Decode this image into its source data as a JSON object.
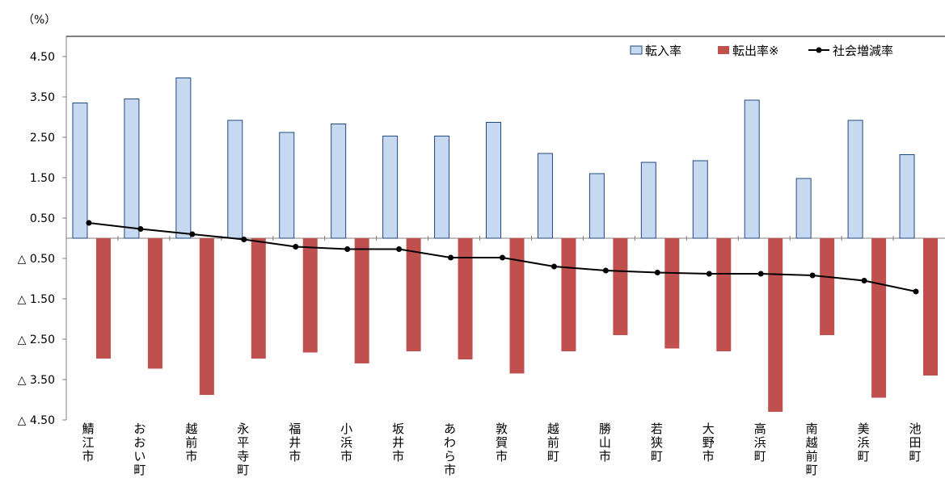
{
  "chart_data": {
    "type": "bar",
    "ylabel": "（%）",
    "ylim": [
      -4.5,
      5.0
    ],
    "yticks": [
      {
        "value": 4.5,
        "label": "4.50"
      },
      {
        "value": 3.5,
        "label": "3.50"
      },
      {
        "value": 2.5,
        "label": "2.50"
      },
      {
        "value": 1.5,
        "label": "1.50"
      },
      {
        "value": 0.5,
        "label": "0.50"
      },
      {
        "value": -0.5,
        "label": "△ 0.50"
      },
      {
        "value": -1.5,
        "label": "△ 1.50"
      },
      {
        "value": -2.5,
        "label": "△ 2.50"
      },
      {
        "value": -3.5,
        "label": "△ 3.50"
      },
      {
        "value": -4.5,
        "label": "△ 4.50"
      }
    ],
    "categories": [
      "鯖江市",
      "おおい町",
      "越前市",
      "永平寺町",
      "福井市",
      "小浜市",
      "坂井市",
      "あわら市",
      "敦賀市",
      "越前町",
      "勝山市",
      "若狭町",
      "大野市",
      "高浜町",
      "南越前町",
      "美浜町",
      "池田町"
    ],
    "series": [
      {
        "name": "転入率",
        "kind": "bar",
        "color": "#c6d9f1",
        "stroke": "#1f497d",
        "values": [
          3.35,
          3.45,
          3.97,
          2.92,
          2.62,
          2.83,
          2.53,
          2.53,
          2.87,
          2.1,
          1.6,
          1.88,
          1.92,
          3.42,
          1.48,
          2.92,
          2.07
        ]
      },
      {
        "name": "転出率※",
        "kind": "bar",
        "color": "#c0504d",
        "stroke": "#c0504d",
        "values": [
          -2.98,
          -3.23,
          -3.88,
          -2.98,
          -2.83,
          -3.1,
          -2.8,
          -3.0,
          -3.35,
          -2.8,
          -2.4,
          -2.73,
          -2.8,
          -4.3,
          -2.4,
          -3.95,
          -3.4
        ]
      },
      {
        "name": "社会増減率",
        "kind": "line",
        "color": "#000000",
        "values": [
          0.38,
          0.23,
          0.1,
          -0.03,
          -0.21,
          -0.27,
          -0.27,
          -0.48,
          -0.48,
          -0.7,
          -0.8,
          -0.85,
          -0.88,
          -0.88,
          -0.92,
          -1.05,
          -1.32
        ]
      }
    ],
    "legend_position": "top-right",
    "grid": false
  }
}
